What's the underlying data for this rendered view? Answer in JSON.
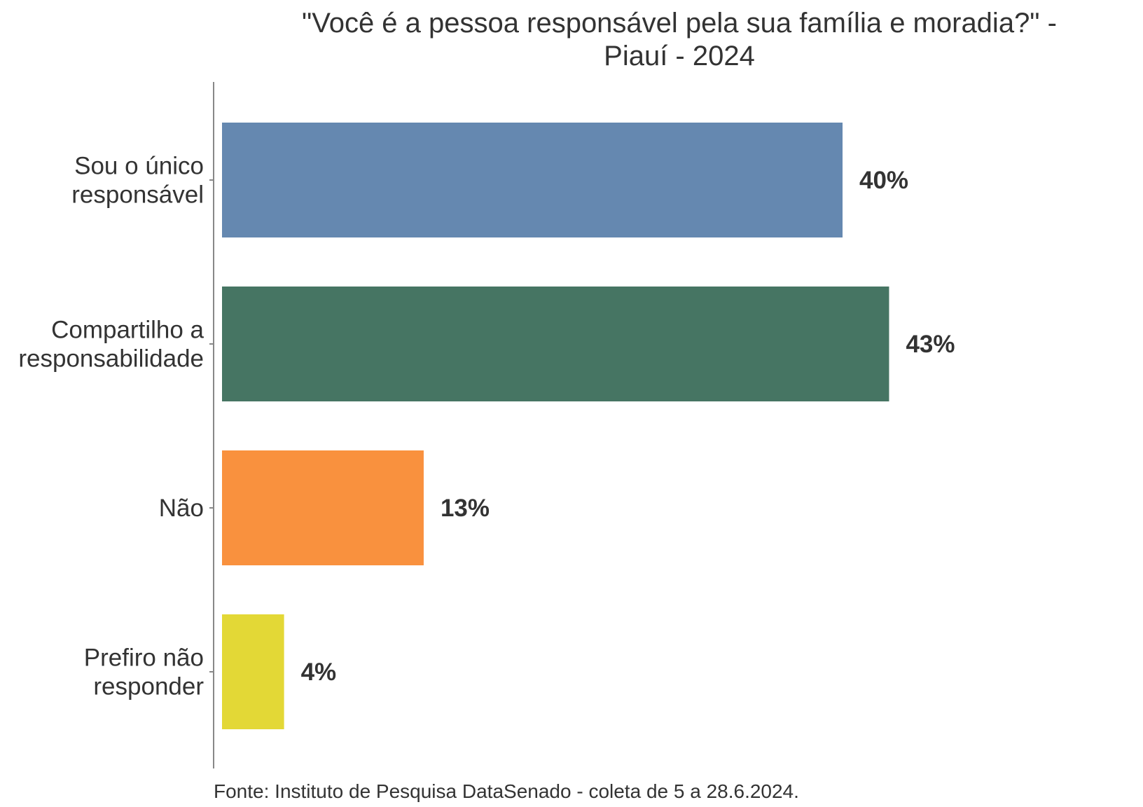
{
  "chart_data": {
    "type": "bar",
    "orientation": "horizontal",
    "title": [
      "\"Você é a pessoa responsável pela sua família e moradia?\" -",
      "Piauí - 2024"
    ],
    "categories": [
      [
        "Sou o único",
        "responsável"
      ],
      [
        "Compartilho a",
        "responsabilidade"
      ],
      [
        "Não"
      ],
      [
        "Prefiro não",
        "responder"
      ]
    ],
    "values": [
      40,
      43,
      13,
      4
    ],
    "value_labels": [
      "40%",
      "43%",
      "13%",
      "4%"
    ],
    "colors": [
      "#6588B0",
      "#467563",
      "#F9913E",
      "#E3D836"
    ],
    "xlim": [
      0,
      48
    ],
    "grid": false,
    "legend": "none",
    "caption": "Fonte: Instituto de Pesquisa DataSenado - coleta de 5 a 28.6.2024."
  }
}
